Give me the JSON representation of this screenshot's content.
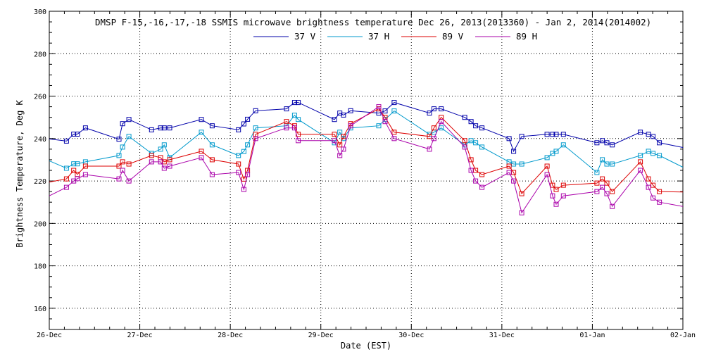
{
  "chart_data": {
    "type": "line",
    "title": "DMSP F-15,-16,-17,-18 SSMIS microwave brightness temperature Dec 26, 2013(2013360) - Jan  2, 2014(2014002)",
    "xlabel": "Date (EST)",
    "ylabel": "Brightness Temperature, Deg K",
    "ylim": [
      150,
      300
    ],
    "yticks": [
      160,
      180,
      200,
      220,
      240,
      260,
      280,
      300
    ],
    "xlim": [
      0,
      7
    ],
    "xticks": [
      {
        "x": 0,
        "label": "26-Dec"
      },
      {
        "x": 1,
        "label": "27-Dec"
      },
      {
        "x": 2,
        "label": "28-Dec"
      },
      {
        "x": 3,
        "label": "29-Dec"
      },
      {
        "x": 4,
        "label": "30-Dec"
      },
      {
        "x": 5,
        "label": "31-Dec"
      },
      {
        "x": 6,
        "label": "01-Jan"
      },
      {
        "x": 7,
        "label": "02-Jan"
      }
    ],
    "grid": true,
    "legend_position": "top",
    "series": [
      {
        "name": "37 V",
        "color": "#0000aa",
        "edge": [
          239.8,
          235.8
        ],
        "points": [
          [
            0.19,
            238.8
          ],
          [
            0.27,
            242.1
          ],
          [
            0.31,
            242.1
          ],
          [
            0.4,
            245.0
          ],
          [
            0.77,
            239.7
          ],
          [
            0.81,
            247.0
          ],
          [
            0.88,
            249.0
          ],
          [
            1.13,
            244.1
          ],
          [
            1.23,
            245.0
          ],
          [
            1.27,
            245.0
          ],
          [
            1.33,
            245.0
          ],
          [
            1.68,
            249.0
          ],
          [
            1.8,
            246.0
          ],
          [
            2.09,
            244.1
          ],
          [
            2.15,
            246.9
          ],
          [
            2.19,
            249.1
          ],
          [
            2.28,
            253.1
          ],
          [
            2.62,
            254.0
          ],
          [
            2.71,
            257.0
          ],
          [
            2.75,
            257.0
          ],
          [
            3.15,
            249.0
          ],
          [
            3.21,
            252.0
          ],
          [
            3.25,
            251.1
          ],
          [
            3.33,
            253.1
          ],
          [
            3.64,
            252.0
          ],
          [
            3.71,
            253.0
          ],
          [
            3.81,
            257.0
          ],
          [
            4.2,
            252.0
          ],
          [
            4.25,
            254.0
          ],
          [
            4.33,
            254.0
          ],
          [
            4.59,
            250.0
          ],
          [
            4.66,
            248.0
          ],
          [
            4.71,
            246.0
          ],
          [
            4.78,
            245.0
          ],
          [
            5.08,
            240.0
          ],
          [
            5.13,
            234.0
          ],
          [
            5.22,
            241.0
          ],
          [
            5.5,
            242.0
          ],
          [
            5.56,
            242.0
          ],
          [
            5.6,
            242.0
          ],
          [
            5.68,
            242.0
          ],
          [
            6.05,
            238.0
          ],
          [
            6.11,
            239.0
          ],
          [
            6.16,
            238.0
          ],
          [
            6.22,
            237.0
          ],
          [
            6.53,
            243.0
          ],
          [
            6.62,
            242.0
          ],
          [
            6.67,
            241.0
          ],
          [
            6.74,
            238.0
          ]
        ]
      },
      {
        "name": "37 H",
        "color": "#0099cc",
        "edge": [
          229.5,
          226.5
        ],
        "points": [
          [
            0.19,
            226.0
          ],
          [
            0.27,
            228.1
          ],
          [
            0.31,
            228.1
          ],
          [
            0.4,
            229.0
          ],
          [
            0.77,
            232.0
          ],
          [
            0.81,
            236.0
          ],
          [
            0.88,
            241.0
          ],
          [
            1.13,
            233.0
          ],
          [
            1.23,
            235.0
          ],
          [
            1.27,
            237.0
          ],
          [
            1.33,
            231.0
          ],
          [
            1.68,
            243.0
          ],
          [
            1.8,
            237.0
          ],
          [
            2.09,
            232.0
          ],
          [
            2.15,
            233.9
          ],
          [
            2.19,
            237.0
          ],
          [
            2.28,
            245.0
          ],
          [
            2.62,
            246.0
          ],
          [
            2.71,
            251.0
          ],
          [
            2.75,
            249.0
          ],
          [
            3.15,
            238.0
          ],
          [
            3.21,
            243.0
          ],
          [
            3.25,
            240.0
          ],
          [
            3.33,
            245.0
          ],
          [
            3.64,
            246.0
          ],
          [
            3.71,
            249.0
          ],
          [
            3.81,
            253.0
          ],
          [
            4.2,
            242.0
          ],
          [
            4.25,
            243.0
          ],
          [
            4.33,
            245.0
          ],
          [
            4.59,
            237.0
          ],
          [
            4.66,
            239.0
          ],
          [
            4.71,
            238.0
          ],
          [
            4.78,
            236.0
          ],
          [
            5.08,
            229.0
          ],
          [
            5.13,
            228.0
          ],
          [
            5.22,
            228.0
          ],
          [
            5.5,
            231.0
          ],
          [
            5.56,
            233.0
          ],
          [
            5.6,
            234.0
          ],
          [
            5.68,
            237.0
          ],
          [
            6.05,
            224.0
          ],
          [
            6.11,
            230.0
          ],
          [
            6.16,
            228.0
          ],
          [
            6.22,
            228.0
          ],
          [
            6.53,
            232.0
          ],
          [
            6.62,
            234.0
          ],
          [
            6.67,
            233.0
          ],
          [
            6.74,
            232.0
          ]
        ]
      },
      {
        "name": "89 V",
        "color": "#dd0000",
        "edge": [
          219.5,
          214.8
        ],
        "points": [
          [
            0.19,
            221.0
          ],
          [
            0.27,
            225.0
          ],
          [
            0.31,
            223.1
          ],
          [
            0.4,
            227.0
          ],
          [
            0.77,
            227.0
          ],
          [
            0.81,
            229.0
          ],
          [
            0.88,
            228.0
          ],
          [
            1.13,
            232.0
          ],
          [
            1.23,
            231.0
          ],
          [
            1.27,
            229.0
          ],
          [
            1.33,
            230.0
          ],
          [
            1.68,
            234.0
          ],
          [
            1.8,
            230.0
          ],
          [
            2.09,
            228.0
          ],
          [
            2.15,
            220.9
          ],
          [
            2.19,
            225.0
          ],
          [
            2.28,
            242.0
          ],
          [
            2.62,
            248.0
          ],
          [
            2.71,
            246.0
          ],
          [
            2.75,
            242.0
          ],
          [
            3.15,
            242.0
          ],
          [
            3.21,
            237.0
          ],
          [
            3.25,
            241.0
          ],
          [
            3.33,
            247.0
          ],
          [
            3.64,
            254.0
          ],
          [
            3.71,
            250.0
          ],
          [
            3.81,
            243.0
          ],
          [
            4.2,
            241.0
          ],
          [
            4.25,
            245.0
          ],
          [
            4.33,
            250.0
          ],
          [
            4.59,
            239.0
          ],
          [
            4.66,
            230.0
          ],
          [
            4.71,
            225.0
          ],
          [
            4.78,
            223.0
          ],
          [
            5.08,
            227.0
          ],
          [
            5.13,
            224.0
          ],
          [
            5.22,
            214.0
          ],
          [
            5.5,
            227.0
          ],
          [
            5.56,
            218.0
          ],
          [
            5.6,
            216.0
          ],
          [
            5.68,
            218.0
          ],
          [
            6.05,
            219.0
          ],
          [
            6.11,
            221.0
          ],
          [
            6.16,
            219.0
          ],
          [
            6.22,
            215.0
          ],
          [
            6.53,
            229.0
          ],
          [
            6.62,
            221.0
          ],
          [
            6.67,
            218.0
          ],
          [
            6.74,
            215.0
          ]
        ]
      },
      {
        "name": "89 H",
        "color": "#aa00aa",
        "edge": [
          213.0,
          208.0
        ],
        "points": [
          [
            0.19,
            217.0
          ],
          [
            0.27,
            220.0
          ],
          [
            0.31,
            221.1
          ],
          [
            0.4,
            223.0
          ],
          [
            0.77,
            221.0
          ],
          [
            0.81,
            225.0
          ],
          [
            0.88,
            220.0
          ],
          [
            1.13,
            229.0
          ],
          [
            1.23,
            229.0
          ],
          [
            1.27,
            226.0
          ],
          [
            1.33,
            227.0
          ],
          [
            1.68,
            231.0
          ],
          [
            1.8,
            223.0
          ],
          [
            2.09,
            224.0
          ],
          [
            2.15,
            216.0
          ],
          [
            2.19,
            223.0
          ],
          [
            2.28,
            240.0
          ],
          [
            2.62,
            245.0
          ],
          [
            2.71,
            245.0
          ],
          [
            2.75,
            239.0
          ],
          [
            3.15,
            239.0
          ],
          [
            3.21,
            232.0
          ],
          [
            3.25,
            235.0
          ],
          [
            3.33,
            246.0
          ],
          [
            3.64,
            255.0
          ],
          [
            3.71,
            248.0
          ],
          [
            3.81,
            240.0
          ],
          [
            4.2,
            235.0
          ],
          [
            4.25,
            240.0
          ],
          [
            4.33,
            248.0
          ],
          [
            4.59,
            236.0
          ],
          [
            4.66,
            225.0
          ],
          [
            4.71,
            220.0
          ],
          [
            4.78,
            217.0
          ],
          [
            5.08,
            224.0
          ],
          [
            5.13,
            220.0
          ],
          [
            5.22,
            205.0
          ],
          [
            5.5,
            223.0
          ],
          [
            5.56,
            213.0
          ],
          [
            5.6,
            209.0
          ],
          [
            5.68,
            213.0
          ],
          [
            6.05,
            215.0
          ],
          [
            6.11,
            217.0
          ],
          [
            6.16,
            214.0
          ],
          [
            6.22,
            208.0
          ],
          [
            6.53,
            225.0
          ],
          [
            6.62,
            217.0
          ],
          [
            6.67,
            212.0
          ],
          [
            6.74,
            210.0
          ]
        ]
      }
    ]
  }
}
